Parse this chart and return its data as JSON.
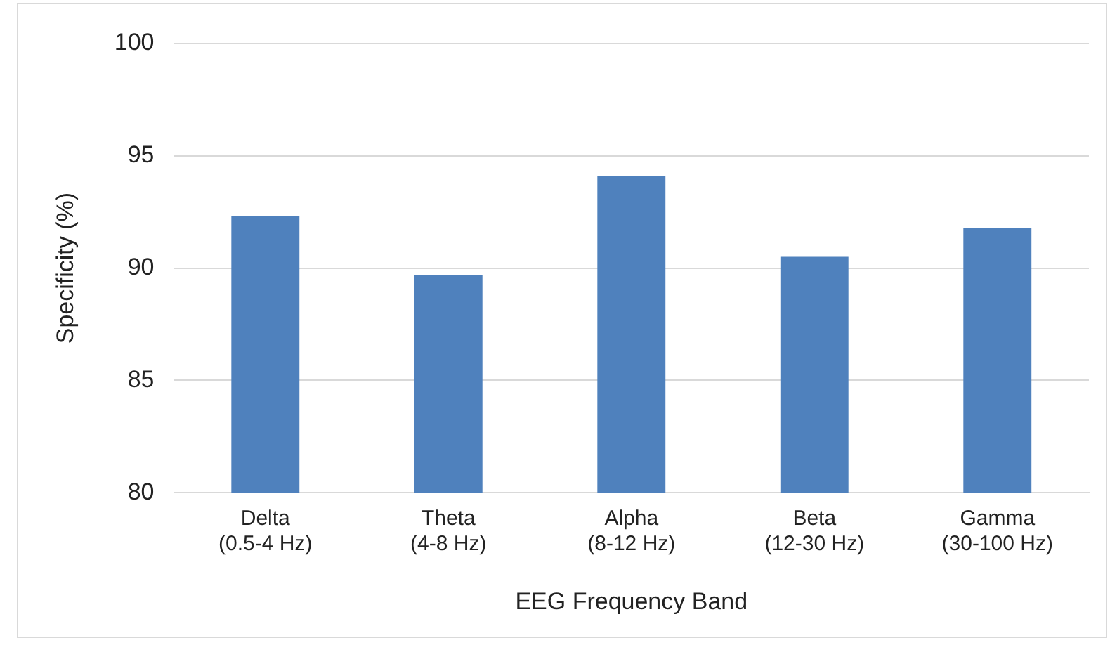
{
  "chart_data": {
    "type": "bar",
    "xlabel": "EEG Frequency Band",
    "ylabel": "Specificity (%)",
    "categories": [
      "Delta (0.5-4 Hz)",
      "Theta (4-8 Hz)",
      "Alpha (8-12 Hz)",
      "Beta (12-30 Hz)",
      "Gamma (30-100 Hz)"
    ],
    "values": [
      92.3,
      89.7,
      94.1,
      90.5,
      91.8
    ],
    "color": "#4f81bd",
    "ylim": [
      80,
      100
    ],
    "yticks": [
      80,
      85,
      90,
      95,
      100
    ],
    "grid": "y",
    "legend": false
  }
}
